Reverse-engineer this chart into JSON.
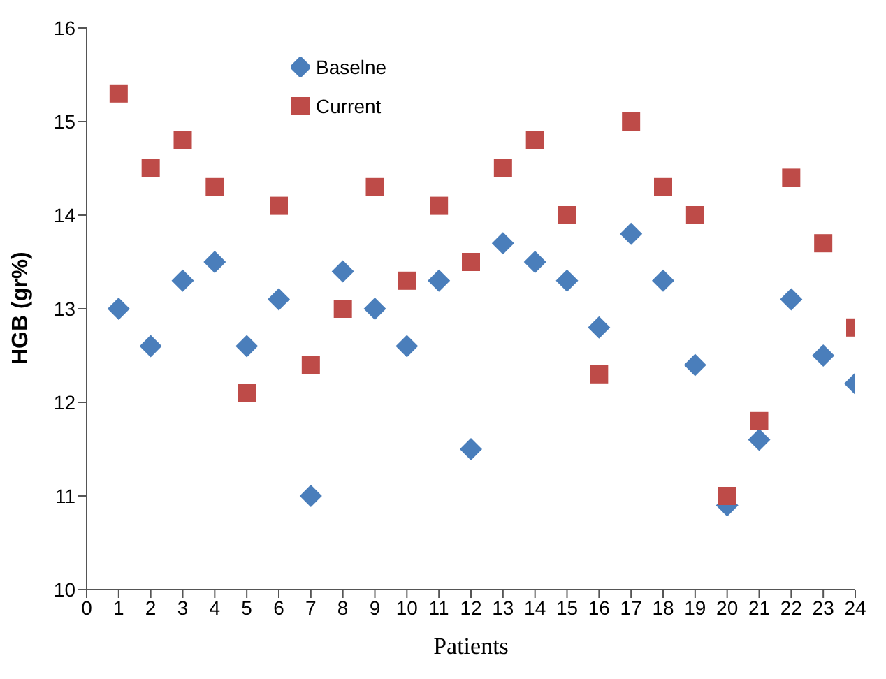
{
  "chart_data": {
    "type": "scatter",
    "xlabel": "Patients",
    "ylabel": "HGB (gr%)",
    "x": [
      1,
      2,
      3,
      4,
      5,
      6,
      7,
      8,
      9,
      10,
      11,
      12,
      13,
      14,
      15,
      16,
      17,
      18,
      19,
      20,
      21,
      22,
      23,
      24
    ],
    "series": [
      {
        "name": "Baselne",
        "color": "#4a7ebb",
        "marker": "diamond",
        "values": [
          13.0,
          12.6,
          13.3,
          13.5,
          12.6,
          13.1,
          11.0,
          13.4,
          13.0,
          12.6,
          13.3,
          11.5,
          13.7,
          13.5,
          13.3,
          12.8,
          13.8,
          13.3,
          12.4,
          10.9,
          11.6,
          13.1,
          12.5,
          12.2
        ]
      },
      {
        "name": "Current",
        "color": "#be4b48",
        "marker": "square",
        "values": [
          15.3,
          14.5,
          14.8,
          14.3,
          12.1,
          14.1,
          12.4,
          13.0,
          14.3,
          13.3,
          14.1,
          13.5,
          14.5,
          14.8,
          14.0,
          12.3,
          15.0,
          14.3,
          14.0,
          11.0,
          11.8,
          14.4,
          13.7,
          12.8
        ]
      }
    ],
    "xlim": [
      0,
      24
    ],
    "xticks": [
      0,
      1,
      2,
      3,
      4,
      5,
      6,
      7,
      8,
      9,
      10,
      11,
      12,
      13,
      14,
      15,
      16,
      17,
      18,
      19,
      20,
      21,
      22,
      23,
      24
    ],
    "ylim": [
      10,
      16
    ],
    "yticks": [
      10,
      11,
      12,
      13,
      14,
      15,
      16
    ],
    "grid": false,
    "legend": "top left"
  }
}
